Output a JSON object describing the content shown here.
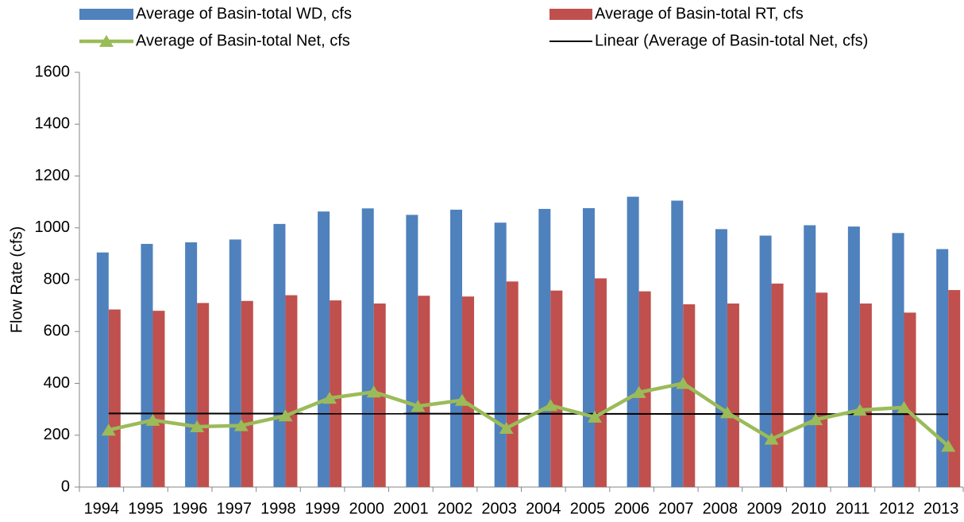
{
  "chart_data": {
    "type": "bar-line",
    "y_label": "Flow Rate (cfs)",
    "categories": [
      "1994",
      "1995",
      "1996",
      "1997",
      "1998",
      "1999",
      "2000",
      "2001",
      "2002",
      "2003",
      "2004",
      "2005",
      "2006",
      "2007",
      "2008",
      "2009",
      "2010",
      "2011",
      "2012",
      "2013"
    ],
    "series": [
      {
        "name": "Average of Basin-total WD, cfs",
        "type": "bar",
        "color": "#4f81bd",
        "values": [
          905,
          938,
          944,
          955,
          1015,
          1063,
          1075,
          1050,
          1070,
          1020,
          1073,
          1076,
          1120,
          1105,
          995,
          970,
          1010,
          1005,
          980,
          918
        ]
      },
      {
        "name": "Average of Basin-total RT, cfs",
        "type": "bar",
        "color": "#c0504d",
        "values": [
          685,
          680,
          710,
          718,
          740,
          720,
          708,
          738,
          735,
          793,
          758,
          805,
          755,
          705,
          708,
          785,
          750,
          708,
          673,
          760
        ]
      },
      {
        "name": "Average of Basin-total Net, cfs",
        "type": "line",
        "color": "#9bbb59",
        "values": [
          220,
          258,
          233,
          237,
          275,
          343,
          367,
          312,
          335,
          227,
          315,
          270,
          365,
          400,
          287,
          185,
          260,
          297,
          307,
          158
        ]
      }
    ],
    "trendline": {
      "name": "Linear (Average of Basin-total Net, cfs)",
      "color": "#000000"
    },
    "ylim": [
      0,
      1600
    ],
    "yticks": [
      0,
      200,
      400,
      600,
      800,
      1000,
      1200,
      1400,
      1600
    ]
  }
}
